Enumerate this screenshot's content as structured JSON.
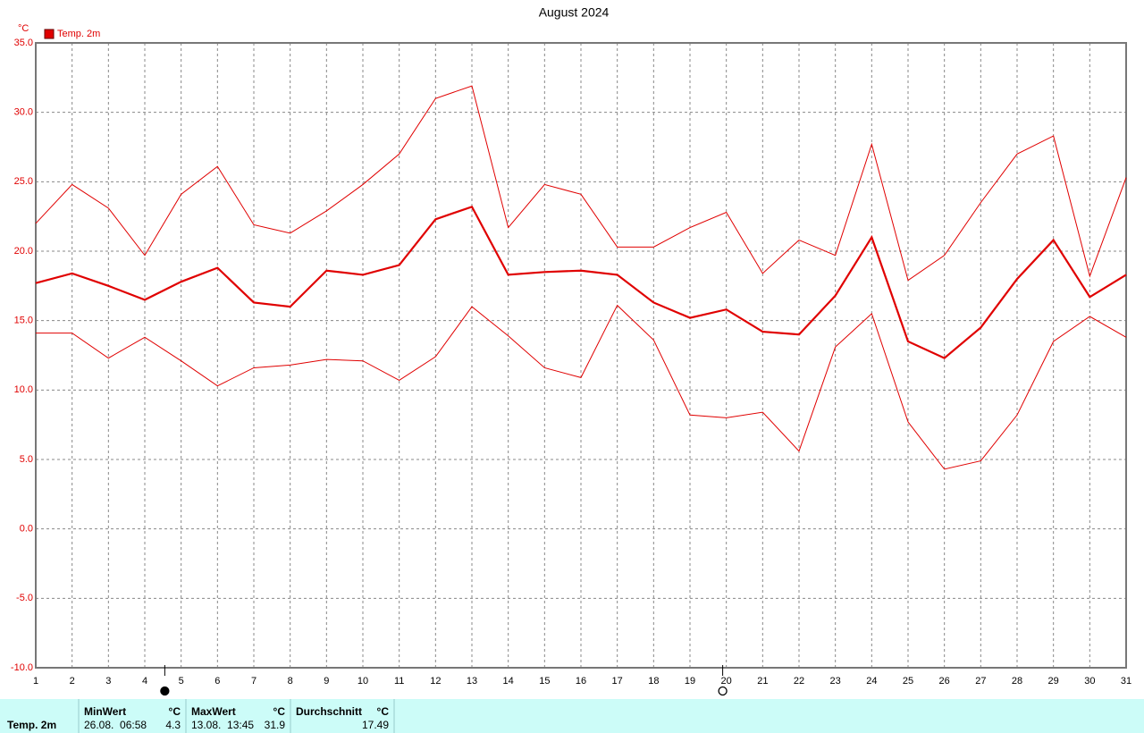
{
  "chart_data": {
    "type": "line",
    "title": "August 2024",
    "y_unit": "°C",
    "x": [
      1,
      2,
      3,
      4,
      5,
      6,
      7,
      8,
      9,
      10,
      11,
      12,
      13,
      14,
      15,
      16,
      17,
      18,
      19,
      20,
      21,
      22,
      23,
      24,
      25,
      26,
      27,
      28,
      29,
      30,
      31
    ],
    "xlim": [
      1,
      31
    ],
    "series": [
      {
        "color": "#e00000",
        "width": 1,
        "values": [
          22.0,
          24.8,
          23.1,
          19.7,
          24.1,
          26.1,
          21.9,
          21.3,
          22.9,
          24.8,
          27.0,
          31.0,
          31.9,
          21.7,
          24.8,
          24.1,
          20.3,
          20.3,
          21.7,
          22.8,
          18.4,
          20.8,
          19.7,
          27.7,
          17.9,
          19.7,
          23.5,
          27.0,
          28.3,
          18.2,
          25.3
        ]
      },
      {
        "name": "Temp. 2m",
        "color": "#e00000",
        "width": 2.2,
        "values": [
          17.7,
          18.4,
          17.5,
          16.5,
          17.8,
          18.8,
          16.3,
          16.0,
          18.6,
          18.3,
          19.0,
          22.3,
          23.2,
          18.3,
          18.5,
          18.6,
          18.3,
          16.3,
          15.2,
          15.8,
          14.2,
          14.0,
          16.8,
          21.0,
          13.5,
          12.3,
          14.5,
          18.0,
          20.8,
          16.7,
          18.3
        ]
      },
      {
        "color": "#e00000",
        "width": 1,
        "values": [
          14.1,
          14.1,
          12.3,
          13.8,
          12.1,
          10.3,
          11.6,
          11.8,
          12.2,
          12.1,
          10.7,
          12.4,
          16.0,
          13.9,
          11.6,
          10.9,
          16.1,
          13.6,
          8.2,
          8.0,
          8.4,
          5.6,
          13.1,
          15.5,
          7.7,
          4.3,
          4.9,
          8.2,
          13.5,
          15.3,
          13.8
        ]
      }
    ],
    "ylim": [
      -10,
      35
    ],
    "yticks": [
      {
        "value": -10,
        "label": "-10.0"
      },
      {
        "value": -5,
        "label": "-5.0"
      },
      {
        "value": 0,
        "label": "0.0"
      },
      {
        "value": 5,
        "label": "5.0"
      },
      {
        "value": 10,
        "label": "10.0"
      },
      {
        "value": 15,
        "label": "15.0"
      },
      {
        "value": 20,
        "label": "20.0"
      },
      {
        "value": 25,
        "label": "25.0"
      },
      {
        "value": 30,
        "label": "30.0"
      },
      {
        "value": 35,
        "label": "35.0"
      }
    ],
    "grid": true,
    "legend": "top-left",
    "moon_markers": [
      {
        "x": 4.55,
        "filled": true
      },
      {
        "x": 19.9,
        "filled": false
      }
    ]
  },
  "table": {
    "row_label": "Temp. 2m",
    "columns": [
      {
        "header": "MinWert",
        "unit": "°C",
        "time": "26.08.  06:58",
        "value": 4.3
      },
      {
        "header": "MaxWert",
        "unit": "°C",
        "time": "13.08.  13:45",
        "value": 31.9
      },
      {
        "header": "Durchschnitt",
        "unit": "°C",
        "value": 17.49
      }
    ]
  }
}
